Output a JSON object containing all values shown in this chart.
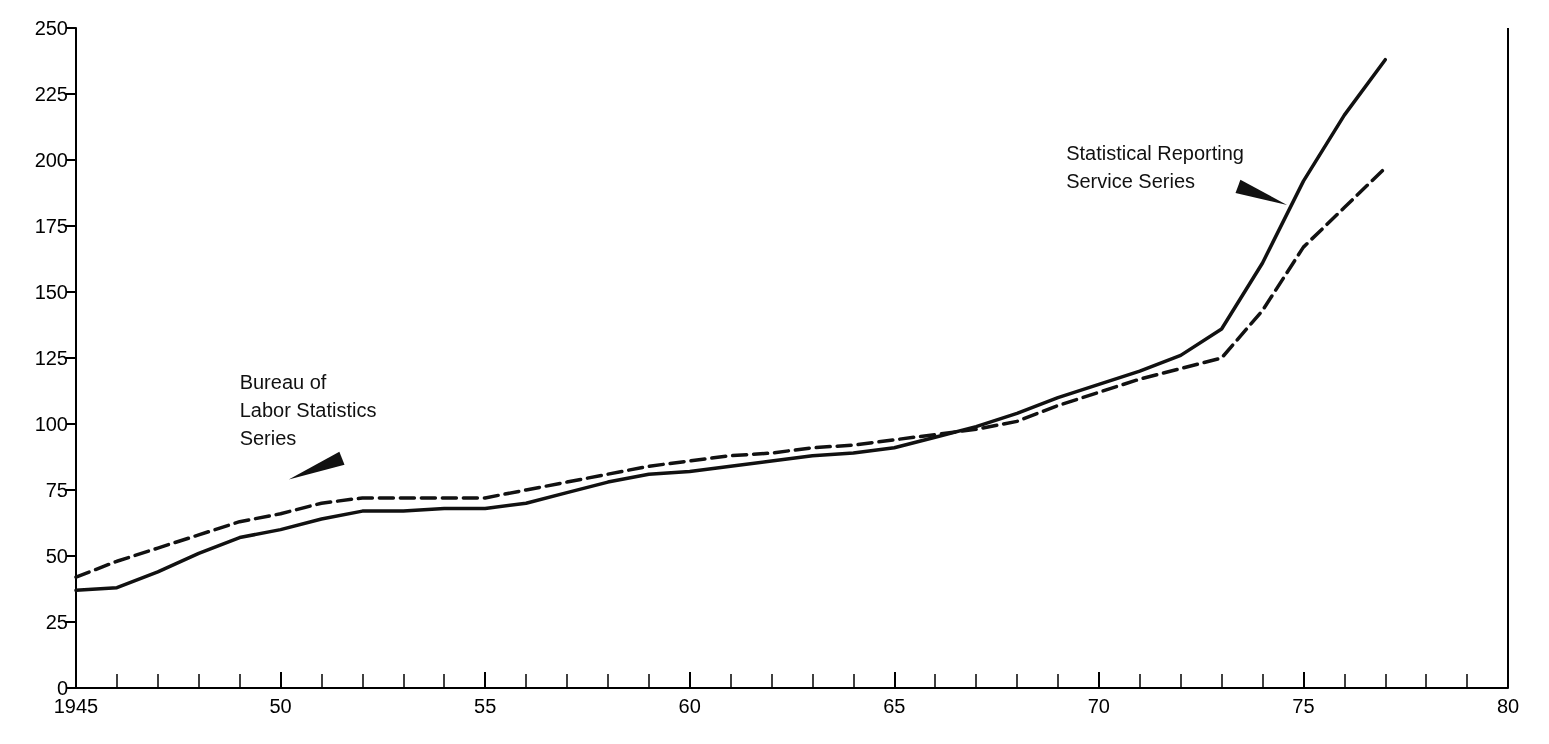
{
  "chart_data": {
    "type": "line",
    "x": [
      1945,
      1946,
      1947,
      1948,
      1949,
      1950,
      1951,
      1952,
      1953,
      1954,
      1955,
      1956,
      1957,
      1958,
      1959,
      1960,
      1961,
      1962,
      1963,
      1964,
      1965,
      1966,
      1967,
      1968,
      1969,
      1970,
      1971,
      1972,
      1973,
      1974,
      1975,
      1976,
      1977
    ],
    "series": [
      {
        "name": "Statistical Reporting Service Series",
        "color": "#111111",
        "line_style": "solid",
        "values": [
          37,
          38,
          44,
          51,
          57,
          60,
          64,
          67,
          67,
          68,
          68,
          70,
          74,
          78,
          81,
          82,
          84,
          86,
          88,
          89,
          91,
          95,
          99,
          104,
          110,
          115,
          120,
          126,
          136,
          161,
          192,
          217,
          238
        ]
      },
      {
        "name": "Bureau of Labor Statistics Series",
        "color": "#111111",
        "line_style": "dashed",
        "values": [
          42,
          48,
          53,
          58,
          63,
          66,
          70,
          72,
          72,
          72,
          72,
          75,
          78,
          81,
          84,
          86,
          88,
          89,
          91,
          92,
          94,
          96,
          98,
          101,
          107,
          112,
          117,
          121,
          125,
          143,
          167,
          182,
          197
        ]
      }
    ],
    "xlim": [
      1945,
      1980
    ],
    "xticks": [
      {
        "value": 1945,
        "label": "1945"
      },
      {
        "value": 1950,
        "label": "50"
      },
      {
        "value": 1955,
        "label": "55"
      },
      {
        "value": 1960,
        "label": "60"
      },
      {
        "value": 1965,
        "label": "65"
      },
      {
        "value": 1970,
        "label": "70"
      },
      {
        "value": 1975,
        "label": "75"
      },
      {
        "value": 1980,
        "label": "80"
      }
    ],
    "ylim": [
      0,
      250
    ],
    "yticks": [
      0,
      25,
      50,
      75,
      100,
      125,
      150,
      175,
      200,
      225,
      250
    ],
    "grid": false,
    "legend": false,
    "marker": "none"
  }
}
